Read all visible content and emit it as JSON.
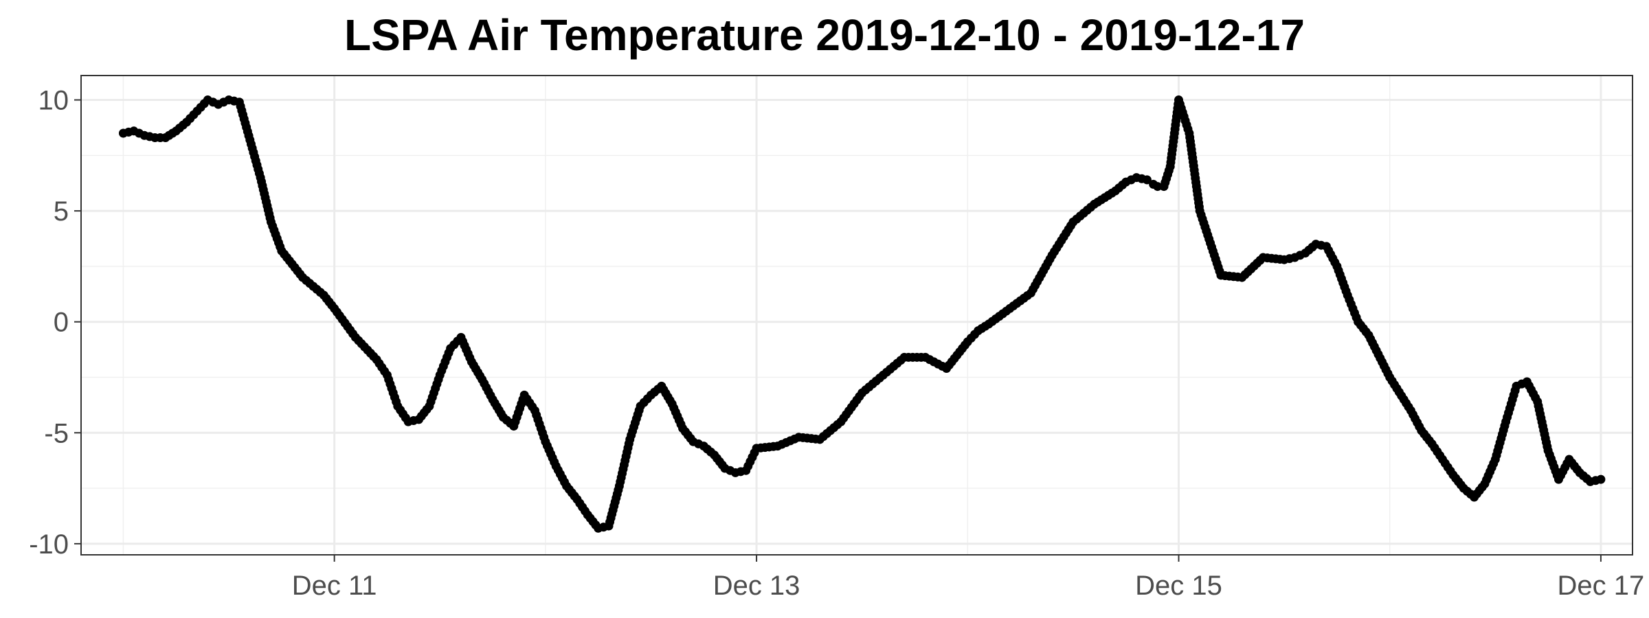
{
  "chart_data": {
    "type": "scatter",
    "title": "LSPA Air Temperature 2019-12-10 - 2019-12-17",
    "xlabel": "",
    "ylabel": "",
    "x_unit": "days since 2019-12-10 00:00",
    "xlim": [
      -0.2,
      7.15
    ],
    "ylim": [
      -10.5,
      11.1
    ],
    "x_ticks": [
      {
        "value": 1,
        "label": "Dec 11"
      },
      {
        "value": 3,
        "label": "Dec 13"
      },
      {
        "value": 5,
        "label": "Dec 15"
      },
      {
        "value": 7,
        "label": "Dec 17"
      }
    ],
    "y_ticks": [
      {
        "value": 10,
        "label": "10"
      },
      {
        "value": 5,
        "label": "5"
      },
      {
        "value": 0,
        "label": "0"
      },
      {
        "value": -5,
        "label": "-5"
      },
      {
        "value": -10,
        "label": "-10"
      }
    ],
    "grid": true,
    "legend": "none",
    "marker_color": "#000000",
    "series": [
      {
        "name": "",
        "x": [
          0.0,
          0.05,
          0.1,
          0.15,
          0.2,
          0.25,
          0.3,
          0.35,
          0.4,
          0.45,
          0.5,
          0.55,
          0.6,
          0.65,
          0.7,
          0.75,
          0.8,
          0.85,
          0.9,
          0.95,
          1.0,
          1.1,
          1.2,
          1.25,
          1.3,
          1.35,
          1.4,
          1.45,
          1.5,
          1.55,
          1.6,
          1.65,
          1.7,
          1.75,
          1.8,
          1.85,
          1.9,
          1.95,
          2.0,
          2.05,
          2.1,
          2.15,
          2.2,
          2.25,
          2.3,
          2.35,
          2.4,
          2.45,
          2.5,
          2.55,
          2.6,
          2.65,
          2.7,
          2.75,
          2.8,
          2.85,
          2.9,
          2.95,
          3.0,
          3.1,
          3.2,
          3.3,
          3.4,
          3.5,
          3.6,
          3.7,
          3.8,
          3.9,
          4.0,
          4.05,
          4.1,
          4.2,
          4.3,
          4.4,
          4.5,
          4.6,
          4.65,
          4.7,
          4.75,
          4.8,
          4.85,
          4.88,
          4.9,
          4.93,
          4.96,
          5.0,
          5.05,
          5.1,
          5.2,
          5.3,
          5.4,
          5.5,
          5.55,
          5.6,
          5.65,
          5.7,
          5.75,
          5.8,
          5.85,
          5.9,
          6.0,
          6.1,
          6.15,
          6.2,
          6.25,
          6.3,
          6.35,
          6.4,
          6.45,
          6.5,
          6.55,
          6.6,
          6.65,
          6.7,
          6.75,
          6.8,
          6.85,
          6.9,
          6.95,
          7.0
        ],
        "y": [
          8.5,
          8.6,
          8.4,
          8.3,
          8.3,
          8.6,
          9.0,
          9.5,
          10.0,
          9.8,
          10.0,
          9.9,
          8.2,
          6.5,
          4.5,
          3.2,
          2.6,
          2.0,
          1.6,
          1.2,
          0.6,
          -0.7,
          -1.7,
          -2.4,
          -3.8,
          -4.5,
          -4.4,
          -3.8,
          -2.4,
          -1.2,
          -0.7,
          -1.8,
          -2.6,
          -3.5,
          -4.3,
          -4.7,
          -3.3,
          -4.0,
          -5.4,
          -6.5,
          -7.4,
          -8.0,
          -8.7,
          -9.3,
          -9.2,
          -7.4,
          -5.3,
          -3.8,
          -3.3,
          -2.9,
          -3.7,
          -4.8,
          -5.4,
          -5.6,
          -6.0,
          -6.6,
          -6.8,
          -6.7,
          -5.7,
          -5.6,
          -5.2,
          -5.3,
          -4.5,
          -3.2,
          -2.4,
          -1.6,
          -1.6,
          -2.1,
          -0.9,
          -0.4,
          -0.1,
          0.6,
          1.3,
          3.0,
          4.5,
          5.3,
          5.6,
          5.9,
          6.3,
          6.5,
          6.4,
          6.2,
          6.1,
          6.1,
          7.0,
          10.0,
          8.5,
          5.0,
          2.1,
          2.0,
          2.9,
          2.8,
          2.9,
          3.1,
          3.5,
          3.4,
          2.5,
          1.2,
          0.0,
          -0.6,
          -2.5,
          -4.0,
          -4.9,
          -5.5,
          -6.2,
          -6.9,
          -7.5,
          -7.9,
          -7.3,
          -6.2,
          -4.5,
          -2.9,
          -2.7,
          -3.6,
          -5.8,
          -7.1,
          -6.2,
          -6.8,
          -7.2,
          -7.1
        ]
      }
    ]
  }
}
